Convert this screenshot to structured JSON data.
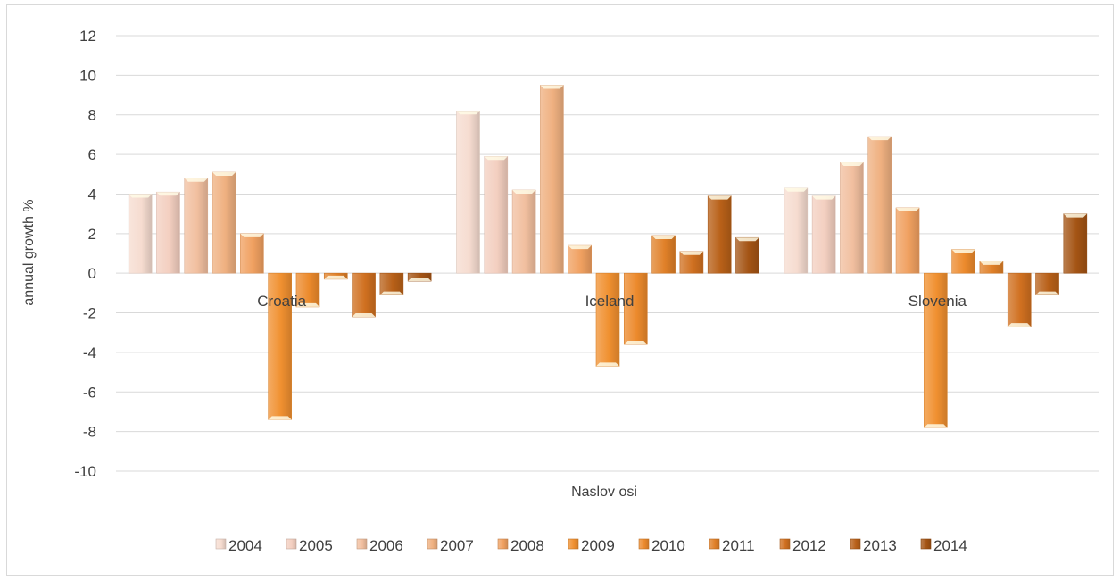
{
  "chart_data": {
    "type": "bar",
    "title": "",
    "xlabel": "Naslov osi",
    "ylabel": "annual growth %",
    "ylim": [
      -10,
      12
    ],
    "ytick_step": 2,
    "yticks": [
      "12",
      "10",
      "8",
      "6",
      "4",
      "2",
      "0",
      "-2",
      "-4",
      "-6",
      "-8",
      "-10"
    ],
    "grid": true,
    "legend_position": "bottom",
    "categories": [
      "Croatia",
      "Iceland",
      "Slovenia"
    ],
    "series": [
      {
        "name": "2004",
        "color": "#f6dcd0",
        "values": [
          4.0,
          8.2,
          4.3
        ]
      },
      {
        "name": "2005",
        "color": "#f3cfc0",
        "values": [
          4.1,
          5.9,
          3.9
        ]
      },
      {
        "name": "2006",
        "color": "#f1bf9f",
        "values": [
          4.8,
          4.2,
          5.6
        ]
      },
      {
        "name": "2007",
        "color": "#efb080",
        "values": [
          5.1,
          9.5,
          6.9
        ]
      },
      {
        "name": "2008",
        "color": "#f0a060",
        "values": [
          2.0,
          1.4,
          3.3
        ]
      },
      {
        "name": "2009",
        "color": "#f09030",
        "values": [
          -7.4,
          -4.7,
          -7.8
        ]
      },
      {
        "name": "2010",
        "color": "#ec8a2c",
        "values": [
          -1.7,
          -3.6,
          1.2
        ]
      },
      {
        "name": "2011",
        "color": "#e08028",
        "values": [
          -0.3,
          1.9,
          0.6
        ]
      },
      {
        "name": "2012",
        "color": "#d07020",
        "values": [
          -2.2,
          1.1,
          -2.7
        ]
      },
      {
        "name": "2013",
        "color": "#b86018",
        "values": [
          -1.1,
          3.9,
          -1.1
        ]
      },
      {
        "name": "2014",
        "color": "#a45414",
        "values": [
          -0.4,
          1.8,
          3.0
        ]
      }
    ]
  }
}
